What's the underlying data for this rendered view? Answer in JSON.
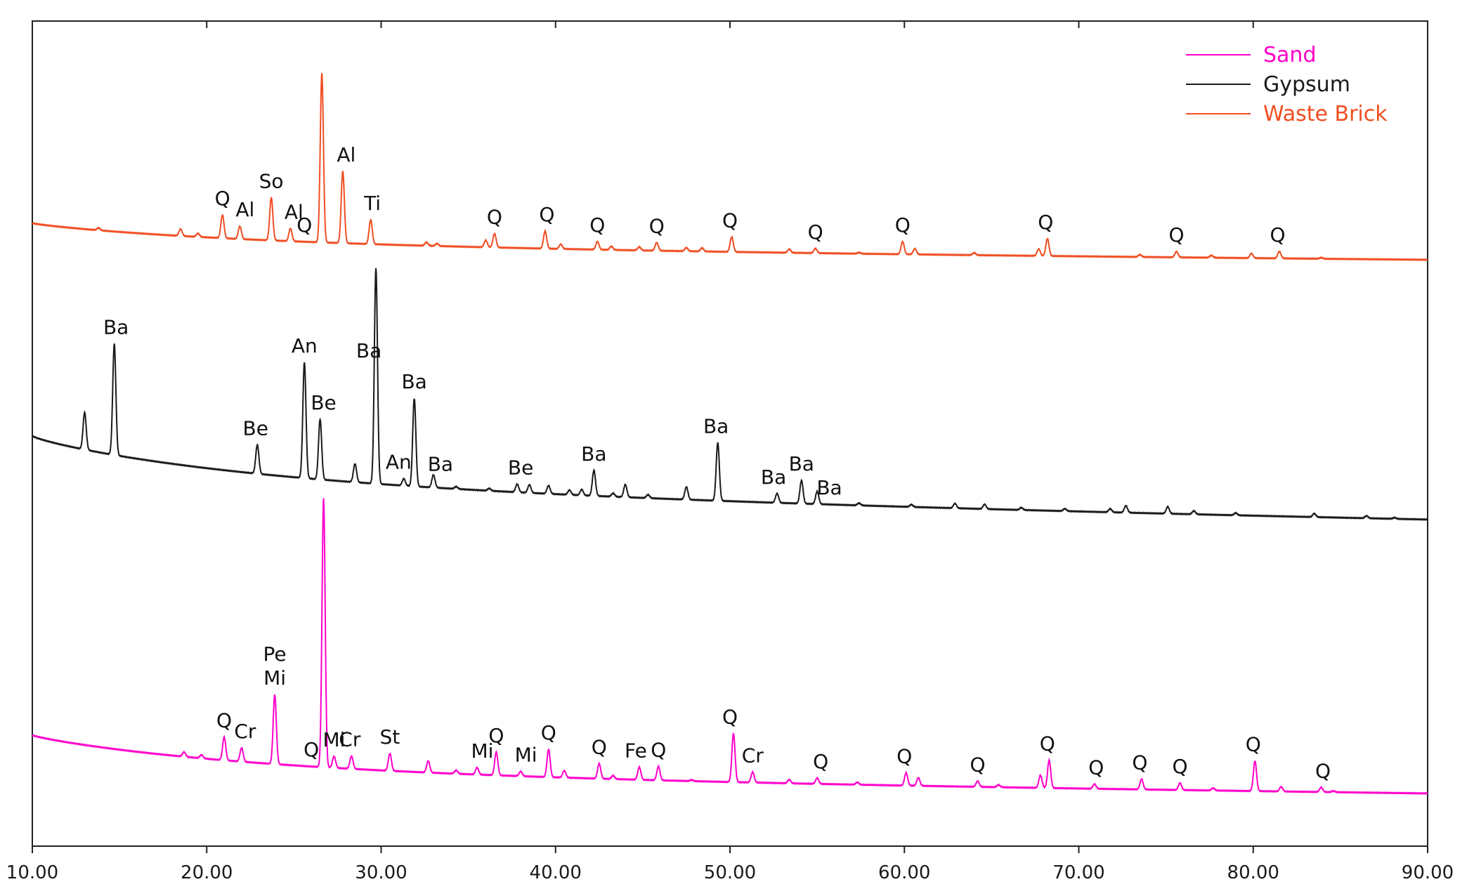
{
  "chart_data": {
    "type": "line",
    "title": "",
    "xlabel": "",
    "ylabel": "",
    "xlim": [
      10,
      90
    ],
    "x_ticks": [
      "10.00",
      "20.00",
      "30.00",
      "40.00",
      "50.00",
      "60.00",
      "70.00",
      "80.00",
      "90.00"
    ],
    "grid": false,
    "legend_position": "top-right",
    "legend": [
      {
        "name": "Sand",
        "color": "#ff00cc"
      },
      {
        "name": "Gypsum",
        "color": "#1a1a1a"
      },
      {
        "name": "Waste Brick",
        "color": "#f04e23"
      }
    ],
    "series": [
      {
        "name": "Waste Brick",
        "color": "#f04e23",
        "baseline_start": 0.68,
        "baseline_end": 0.92,
        "peaks": [
          [
            13.8,
            0.1
          ],
          [
            18.5,
            0.3
          ],
          [
            19.5,
            0.15
          ],
          [
            20.9,
            1.0
          ],
          [
            21.9,
            0.55
          ],
          [
            23.7,
            1.85
          ],
          [
            24.8,
            0.55
          ],
          [
            26.6,
            7.3
          ],
          [
            27.8,
            3.1
          ],
          [
            29.4,
            1.05
          ],
          [
            32.6,
            0.15
          ],
          [
            33.2,
            0.1
          ],
          [
            36.0,
            0.3
          ],
          [
            36.5,
            0.6
          ],
          [
            39.4,
            0.75
          ],
          [
            40.3,
            0.2
          ],
          [
            42.4,
            0.35
          ],
          [
            43.2,
            0.15
          ],
          [
            44.8,
            0.15
          ],
          [
            45.8,
            0.35
          ],
          [
            47.5,
            0.15
          ],
          [
            48.4,
            0.15
          ],
          [
            50.1,
            0.65
          ],
          [
            53.4,
            0.15
          ],
          [
            54.9,
            0.2
          ],
          [
            57.4,
            0.05
          ],
          [
            59.9,
            0.55
          ],
          [
            60.6,
            0.25
          ],
          [
            64.0,
            0.1
          ],
          [
            67.7,
            0.3
          ],
          [
            68.2,
            0.75
          ],
          [
            73.5,
            0.1
          ],
          [
            75.6,
            0.25
          ],
          [
            77.6,
            0.1
          ],
          [
            79.9,
            0.2
          ],
          [
            81.5,
            0.3
          ],
          [
            83.9,
            0.05
          ]
        ],
        "labels": [
          {
            "x": 20.9,
            "text": "Q"
          },
          {
            "x": 22.2,
            "text": "Al"
          },
          {
            "x": 23.7,
            "text": "So"
          },
          {
            "x": 25.0,
            "text": "Al"
          },
          {
            "x": 25.6,
            "text": "Q"
          },
          {
            "x": 28.0,
            "text": "Al"
          },
          {
            "x": 29.5,
            "text": "Ti"
          },
          {
            "x": 36.5,
            "text": "Q"
          },
          {
            "x": 39.5,
            "text": "Q"
          },
          {
            "x": 42.4,
            "text": "Q"
          },
          {
            "x": 45.8,
            "text": "Q"
          },
          {
            "x": 50.0,
            "text": "Q"
          },
          {
            "x": 54.9,
            "text": "Q"
          },
          {
            "x": 59.9,
            "text": "Q"
          },
          {
            "x": 68.1,
            "text": "Q"
          },
          {
            "x": 75.6,
            "text": "Q"
          },
          {
            "x": 81.4,
            "text": "Q"
          }
        ]
      },
      {
        "name": "Gypsum",
        "color": "#1a1a1a",
        "baseline_start": 1.5,
        "baseline_end": 0.75,
        "peaks": [
          [
            13.0,
            1.6
          ],
          [
            14.7,
            4.8
          ],
          [
            22.9,
            1.25
          ],
          [
            25.6,
            5.0
          ],
          [
            26.5,
            2.6
          ],
          [
            28.5,
            0.8
          ],
          [
            29.7,
            9.3
          ],
          [
            31.3,
            0.3
          ],
          [
            31.9,
            3.8
          ],
          [
            33.0,
            0.55
          ],
          [
            34.3,
            0.1
          ],
          [
            36.2,
            0.1
          ],
          [
            37.8,
            0.35
          ],
          [
            38.5,
            0.35
          ],
          [
            39.6,
            0.35
          ],
          [
            40.8,
            0.2
          ],
          [
            41.5,
            0.25
          ],
          [
            42.2,
            1.1
          ],
          [
            43.3,
            0.15
          ],
          [
            44.0,
            0.55
          ],
          [
            45.3,
            0.15
          ],
          [
            47.5,
            0.55
          ],
          [
            49.3,
            2.5
          ],
          [
            52.7,
            0.4
          ],
          [
            54.1,
            1.0
          ],
          [
            55.0,
            0.55
          ],
          [
            57.4,
            0.1
          ],
          [
            60.4,
            0.1
          ],
          [
            62.9,
            0.2
          ],
          [
            64.6,
            0.2
          ],
          [
            66.7,
            0.1
          ],
          [
            69.2,
            0.1
          ],
          [
            71.8,
            0.15
          ],
          [
            72.7,
            0.3
          ],
          [
            75.1,
            0.3
          ],
          [
            76.6,
            0.15
          ],
          [
            79.0,
            0.1
          ],
          [
            83.5,
            0.15
          ],
          [
            86.5,
            0.1
          ],
          [
            88.1,
            0.05
          ]
        ],
        "labels": [
          {
            "x": 14.8,
            "text": "Ba"
          },
          {
            "x": 22.8,
            "text": "Be"
          },
          {
            "x": 25.6,
            "text": "An"
          },
          {
            "x": 26.7,
            "text": "Be"
          },
          {
            "x": 29.3,
            "text": "Ba"
          },
          {
            "x": 31.9,
            "text": "Ba"
          },
          {
            "x": 31.0,
            "text": "An"
          },
          {
            "x": 33.4,
            "text": "Ba"
          },
          {
            "x": 38.0,
            "text": "Be"
          },
          {
            "x": 42.2,
            "text": "Ba"
          },
          {
            "x": 49.2,
            "text": "Ba"
          },
          {
            "x": 52.5,
            "text": "Ba"
          },
          {
            "x": 54.1,
            "text": "Ba"
          },
          {
            "x": 55.7,
            "text": "Ba"
          }
        ]
      },
      {
        "name": "Sand",
        "color": "#ff00cc",
        "baseline_start": 1.25,
        "baseline_end": 0.0,
        "peaks": [
          [
            18.7,
            0.2
          ],
          [
            19.7,
            0.15
          ],
          [
            21.0,
            1.0
          ],
          [
            22.0,
            0.6
          ],
          [
            23.9,
            3.0
          ],
          [
            26.7,
            11.6
          ],
          [
            27.3,
            0.5
          ],
          [
            28.3,
            0.55
          ],
          [
            30.5,
            0.75
          ],
          [
            32.7,
            0.5
          ],
          [
            34.3,
            0.15
          ],
          [
            35.5,
            0.3
          ],
          [
            36.6,
            1.0
          ],
          [
            38.0,
            0.2
          ],
          [
            39.6,
            1.2
          ],
          [
            40.5,
            0.3
          ],
          [
            42.5,
            0.65
          ],
          [
            43.3,
            0.15
          ],
          [
            44.8,
            0.55
          ],
          [
            45.9,
            0.6
          ],
          [
            47.8,
            0.05
          ],
          [
            50.2,
            2.1
          ],
          [
            51.3,
            0.45
          ],
          [
            53.4,
            0.15
          ],
          [
            55.0,
            0.25
          ],
          [
            57.3,
            0.1
          ],
          [
            60.1,
            0.55
          ],
          [
            60.8,
            0.35
          ],
          [
            64.2,
            0.25
          ],
          [
            65.4,
            0.1
          ],
          [
            67.8,
            0.55
          ],
          [
            68.3,
            1.2
          ],
          [
            70.9,
            0.2
          ],
          [
            73.6,
            0.45
          ],
          [
            75.8,
            0.3
          ],
          [
            77.7,
            0.1
          ],
          [
            80.1,
            1.3
          ],
          [
            81.6,
            0.2
          ],
          [
            83.9,
            0.2
          ],
          [
            84.6,
            0.05
          ]
        ],
        "labels": [
          {
            "x": 21.0,
            "text": "Q"
          },
          {
            "x": 22.2,
            "text": "Cr"
          },
          {
            "x": 23.9,
            "text": "Mi"
          },
          {
            "x": 23.9,
            "text": "Pe"
          },
          {
            "x": 26.0,
            "text": "Q"
          },
          {
            "x": 27.3,
            "text": "Mi"
          },
          {
            "x": 28.2,
            "text": "Cr"
          },
          {
            "x": 30.5,
            "text": "St"
          },
          {
            "x": 35.8,
            "text": "Mi"
          },
          {
            "x": 36.6,
            "text": "Q"
          },
          {
            "x": 38.3,
            "text": "Mi"
          },
          {
            "x": 39.6,
            "text": "Q"
          },
          {
            "x": 42.5,
            "text": "Q"
          },
          {
            "x": 44.6,
            "text": "Fe"
          },
          {
            "x": 45.9,
            "text": "Q"
          },
          {
            "x": 50.0,
            "text": "Q"
          },
          {
            "x": 51.3,
            "text": "Cr"
          },
          {
            "x": 55.2,
            "text": "Q"
          },
          {
            "x": 60.0,
            "text": "Q"
          },
          {
            "x": 64.2,
            "text": "Q"
          },
          {
            "x": 68.2,
            "text": "Q"
          },
          {
            "x": 71.0,
            "text": "Q"
          },
          {
            "x": 73.5,
            "text": "Q"
          },
          {
            "x": 75.8,
            "text": "Q"
          },
          {
            "x": 80.0,
            "text": "Q"
          },
          {
            "x": 84.0,
            "text": "Q"
          }
        ]
      }
    ]
  }
}
